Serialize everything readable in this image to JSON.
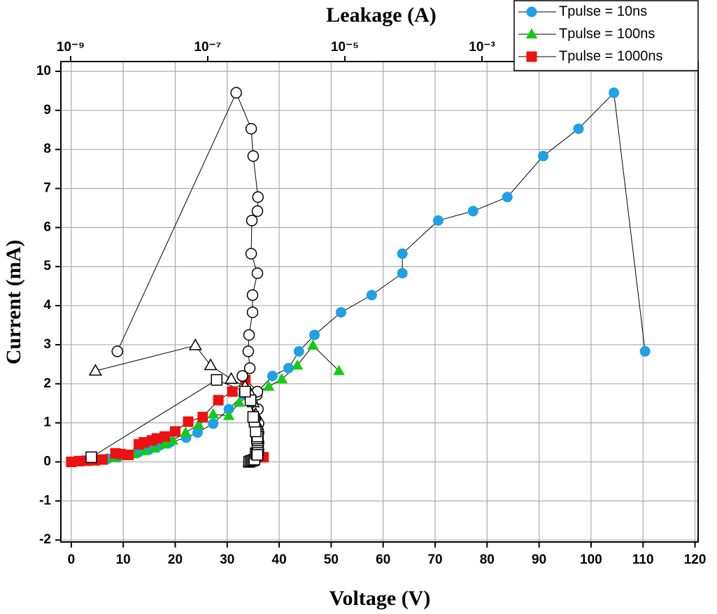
{
  "chart_data": {
    "type": "line",
    "x_label": "Voltage (V)",
    "y_label": "Current (mA)",
    "x2_label": "Leakage (A)",
    "xlim": [
      -2,
      120.6
    ],
    "ylim": [
      -2.05,
      10.25
    ],
    "x2lim": [
      7.2e-10,
      1.42
    ],
    "x2_scale": "log",
    "xticks": [
      0,
      10,
      20,
      30,
      40,
      50,
      60,
      70,
      80,
      90,
      100,
      110,
      120
    ],
    "yticks": [
      -2,
      -1,
      0,
      1,
      2,
      3,
      4,
      5,
      6,
      7,
      8,
      9,
      10
    ],
    "x2ticks": [
      {
        "value": 1e-09,
        "label": "10⁻⁹"
      },
      {
        "value": 1e-07,
        "label": "10⁻⁷"
      },
      {
        "value": 1e-05,
        "label": "10⁻⁵"
      },
      {
        "value": 0.001,
        "label": "10⁻³"
      }
    ],
    "grid": true,
    "legend": "upper right",
    "series": [
      {
        "name": "Tpulse = 10ns",
        "color": "#1ea1e6",
        "marker": "circle",
        "x": [
          0,
          1.5,
          3,
          5,
          7,
          9,
          11,
          13,
          15,
          17,
          19,
          22.1,
          24.3,
          27.3,
          30.3,
          33.1,
          35.9,
          38.7,
          41.8,
          43.8,
          46.8,
          51.9,
          57.8,
          63.7,
          63.7,
          70.6,
          77.3,
          83.9,
          90.8,
          97.6,
          104.4,
          110.4
        ],
        "values": [
          0,
          0.02,
          0.03,
          0.05,
          0.08,
          0.12,
          0.18,
          0.25,
          0.32,
          0.42,
          0.5,
          0.62,
          0.75,
          0.98,
          1.35,
          1.72,
          1.8,
          2.2,
          2.4,
          2.83,
          3.25,
          3.83,
          4.27,
          4.83,
          5.33,
          6.18,
          6.42,
          6.78,
          7.83,
          8.53,
          9.45,
          2.83
        ]
      },
      {
        "name": "Tpulse = 100ns",
        "color": "#11cc11",
        "marker": "triangle",
        "x": [
          0,
          2,
          4,
          6,
          8,
          10,
          12,
          14,
          16,
          18,
          19.5,
          22,
          24.5,
          27.3,
          30.3,
          32.3,
          35,
          38,
          40.5,
          43.5,
          46.5,
          51.5
        ],
        "values": [
          0,
          0.02,
          0.03,
          0.05,
          0.1,
          0.15,
          0.2,
          0.28,
          0.35,
          0.45,
          0.55,
          0.75,
          0.95,
          1.22,
          1.18,
          1.52,
          1.75,
          1.93,
          2.12,
          2.47,
          2.98,
          2.33
        ]
      },
      {
        "name": "Tpulse = 1000ns",
        "color": "#ee1111",
        "marker": "square",
        "x": [
          0,
          1.5,
          3,
          4.5,
          6,
          8.5,
          9.5,
          11,
          13,
          14,
          15.5,
          16.5,
          18,
          20,
          22.5,
          25.3,
          28.3,
          31,
          33.5,
          37
        ],
        "values": [
          0,
          0.02,
          0.03,
          0.04,
          0.06,
          0.22,
          0.2,
          0.18,
          0.45,
          0.5,
          0.55,
          0.6,
          0.65,
          0.78,
          1.03,
          1.15,
          1.58,
          1.8,
          2.1,
          0.12
        ]
      },
      {
        "color": "#000000",
        "marker": "circle-open",
        "axis": "x2",
        "x": [
          4e-07,
          4.2e-07,
          4.4e-07,
          4.6e-07,
          4.8e-07,
          5e-07,
          5.2e-07,
          5.4e-07,
          5.5e-07,
          5.4e-07,
          5.5e-07,
          5.4e-07,
          5.5e-07,
          5.5e-07,
          5.4e-07,
          5.2e-07,
          5.3e-07,
          3.2e-07,
          4.1e-07,
          3.9e-07,
          4e-07,
          4.5e-07,
          4.5e-07,
          5.3e-07,
          4.3e-07,
          4.4e-07,
          5.3e-07,
          5.4e-07,
          4.6e-07,
          4.3e-07,
          2.6e-07,
          4.8e-09
        ],
        "values": [
          0,
          0.02,
          0.03,
          0.05,
          0.08,
          0.12,
          0.18,
          0.25,
          0.32,
          0.42,
          0.5,
          0.62,
          0.75,
          0.98,
          1.35,
          1.72,
          1.8,
          2.2,
          2.4,
          2.83,
          3.25,
          3.83,
          4.27,
          4.83,
          5.33,
          6.18,
          6.42,
          6.78,
          7.83,
          8.53,
          9.45,
          2.83
        ]
      },
      {
        "color": "#000000",
        "marker": "triangle-open",
        "axis": "x2",
        "x": [
          4e-07,
          4.2e-07,
          4.4e-07,
          4.6e-07,
          4.8e-07,
          5e-07,
          5.2e-07,
          5.3e-07,
          5.4e-07,
          5.3e-07,
          5.4e-07,
          5.2e-07,
          5.3e-07,
          5e-07,
          4.8e-07,
          4.6e-07,
          4.2e-07,
          3.5e-07,
          2.2e-07,
          1.1e-07,
          6.6e-08,
          2.3e-09
        ],
        "values": [
          0,
          0.02,
          0.03,
          0.05,
          0.1,
          0.15,
          0.2,
          0.28,
          0.35,
          0.45,
          0.55,
          0.75,
          0.95,
          1.22,
          1.18,
          1.52,
          1.75,
          1.93,
          2.12,
          2.47,
          2.98,
          2.33
        ]
      },
      {
        "color": "#000000",
        "marker": "square-open",
        "axis": "x2",
        "x": [
          4e-07,
          4.2e-07,
          4.4e-07,
          4.6e-07,
          4.8e-07,
          5e-07,
          5.2e-07,
          5.3e-07,
          5.4e-07,
          5.3e-07,
          5.4e-07,
          5.2e-07,
          5.3e-07,
          5e-07,
          4.8e-07,
          4.6e-07,
          4.2e-07,
          3.5e-07,
          1.35e-07,
          2e-09
        ],
        "values": [
          0,
          0.02,
          0.03,
          0.04,
          0.06,
          0.22,
          0.2,
          0.18,
          0.45,
          0.5,
          0.55,
          0.6,
          0.65,
          0.78,
          1.03,
          1.15,
          1.58,
          1.8,
          2.1,
          0.12
        ]
      }
    ]
  }
}
